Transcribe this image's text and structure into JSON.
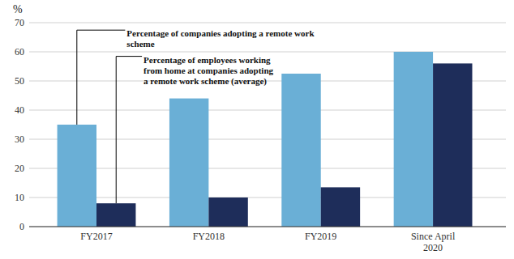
{
  "chart_data": {
    "type": "bar",
    "ylabel": "%",
    "categories": [
      "FY2017",
      "FY2018",
      "FY2019",
      "Since April\n2020"
    ],
    "series": [
      {
        "color": "#6aafd6",
        "values": [
          35,
          44,
          52.5,
          60
        ]
      },
      {
        "color": "#1e2d5a",
        "values": [
          8,
          10,
          13.5,
          56
        ]
      }
    ],
    "ylim": [
      0,
      70
    ],
    "yticks": [
      0,
      10,
      20,
      30,
      40,
      50,
      60,
      70
    ],
    "grid": true,
    "annotations": [
      "Percentage of companies adopting a remote work\nscheme",
      "Percentage of employees working\nfrom home at companies adopting\na remote work scheme (average)"
    ]
  }
}
